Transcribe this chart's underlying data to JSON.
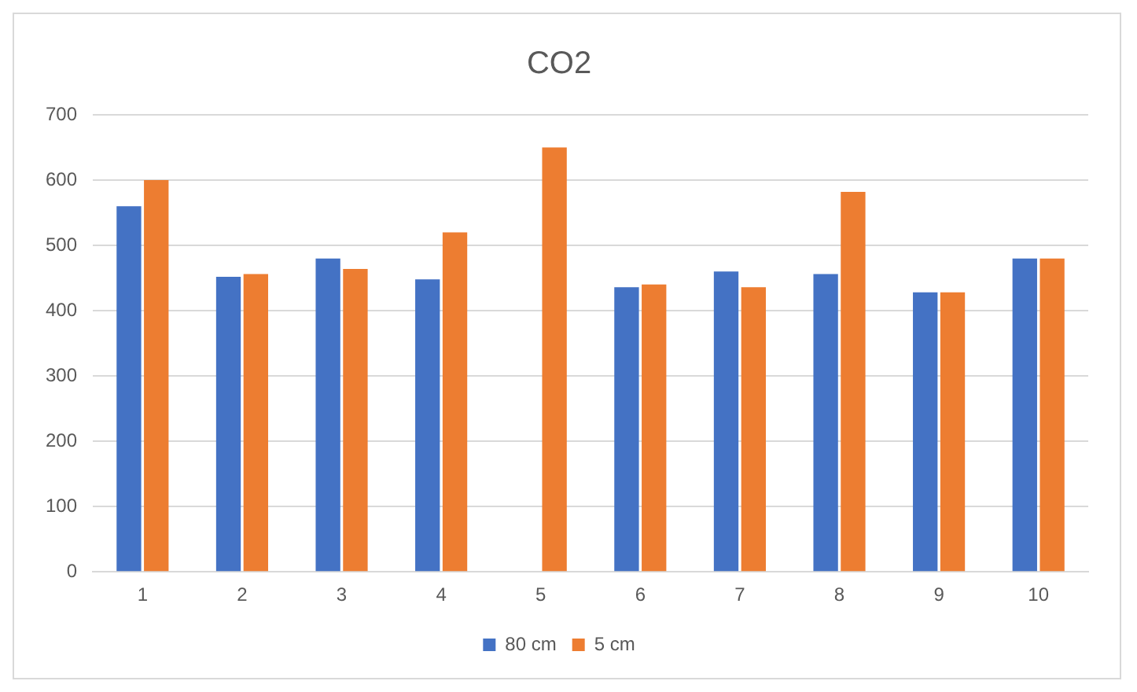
{
  "chart_data": {
    "type": "bar",
    "title": "CO2",
    "categories": [
      "1",
      "2",
      "3",
      "4",
      "5",
      "6",
      "7",
      "8",
      "9",
      "10"
    ],
    "series": [
      {
        "name": "80 cm",
        "color": "#4472c4",
        "values": [
          560,
          452,
          480,
          448,
          null,
          436,
          460,
          456,
          428,
          480
        ]
      },
      {
        "name": "5 cm",
        "color": "#ed7d31",
        "values": [
          600,
          456,
          464,
          520,
          650,
          440,
          436,
          582,
          428,
          480
        ]
      }
    ],
    "ylim": [
      0,
      700
    ],
    "yticks": [
      0,
      100,
      200,
      300,
      400,
      500,
      600,
      700
    ],
    "grid": "y",
    "legend": "bottom"
  }
}
